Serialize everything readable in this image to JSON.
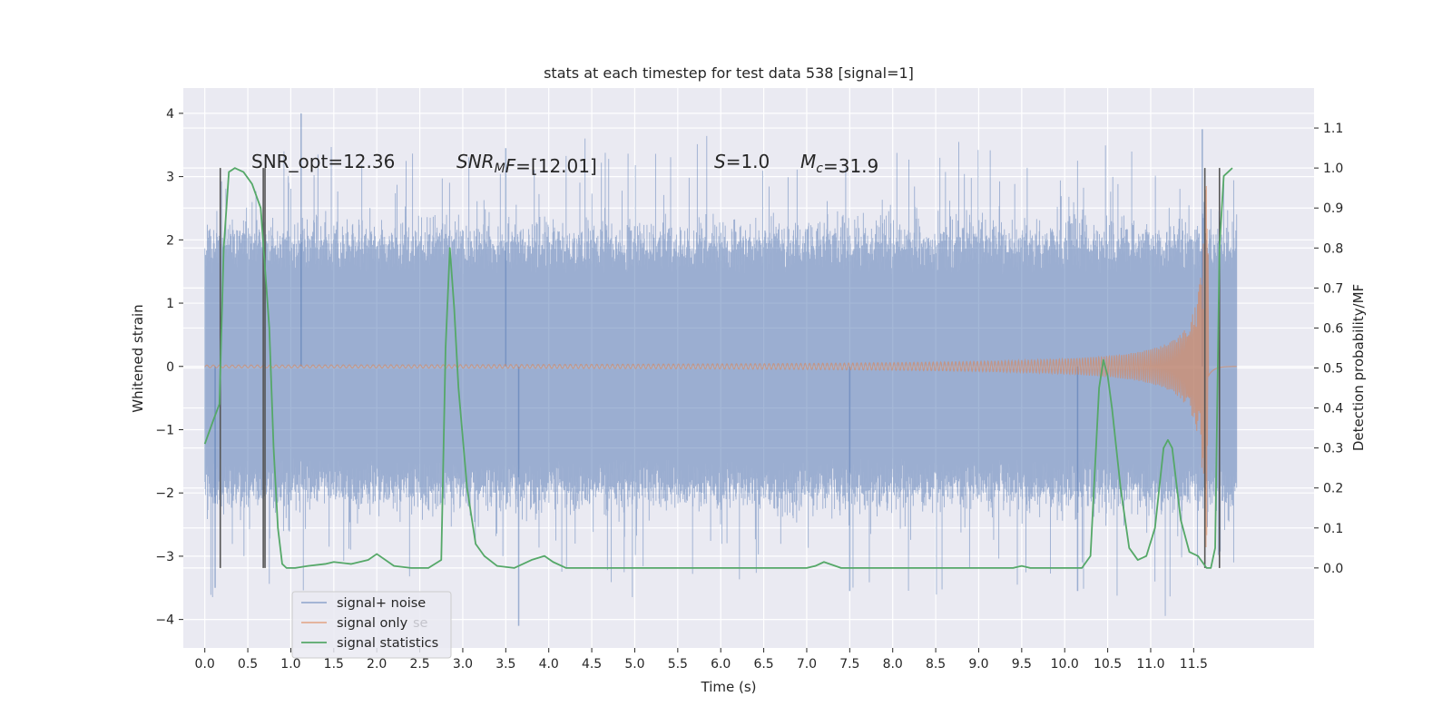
{
  "chart_data": {
    "type": "line",
    "title": "stats at each timestep for test data 538 [signal=1]",
    "xlabel": "Time (s)",
    "ylabel": "Whitened strain",
    "y2label": "Detection probability/MF",
    "xlim": [
      -0.25,
      12.9
    ],
    "ylim": [
      -4.45,
      4.4
    ],
    "y2lim": [
      -0.2,
      1.2
    ],
    "xticks": [
      "0.0",
      "0.5",
      "1.0",
      "1.5",
      "2.0",
      "2.5",
      "3.0",
      "3.5",
      "4.0",
      "4.5",
      "5.0",
      "5.5",
      "6.0",
      "6.5",
      "7.0",
      "7.5",
      "8.0",
      "8.5",
      "9.0",
      "9.5",
      "10.0",
      "10.5",
      "11.0",
      "11.5"
    ],
    "yticks": [
      "4",
      "3",
      "2",
      "1",
      "0",
      "−1",
      "−2",
      "−3",
      "−4"
    ],
    "y2ticks": [
      "1.1",
      "1.0",
      "0.9",
      "0.8",
      "0.7",
      "0.6",
      "0.5",
      "0.4",
      "0.3",
      "0.2",
      "0.1",
      "0.0"
    ],
    "grid": true,
    "legend_position": "lower-left",
    "colors": {
      "background": "#eaeaf2",
      "grid": "#ffffff",
      "noise": "#4c72b0",
      "signal": "#dd8452",
      "stats": "#55a868",
      "markers": "#555555"
    },
    "annotations": [
      {
        "text_plain": "SNR_opt=12.36"
      },
      {
        "main": "SNR",
        "sub": "M",
        "tail": "F=[12.01]"
      },
      {
        "main": "S",
        "tail": "=1.0"
      },
      {
        "main": "M",
        "sub": "c",
        "tail": "=31.9"
      }
    ],
    "series": [
      {
        "name": "signal+ noise",
        "kind": "noise",
        "x_range": [
          0.0,
          12.0
        ],
        "typical_range": [
          -2.0,
          2.0
        ],
        "max": 4.0,
        "min": -4.1
      },
      {
        "name": "signal only",
        "kind": "chirp",
        "x_range": [
          0.0,
          12.0
        ],
        "peak_time": 11.65,
        "peak_amplitude": 2.9
      },
      {
        "name": "signal statistics",
        "kind": "line",
        "axis": "right",
        "x": [
          0.0,
          0.1,
          0.17,
          0.22,
          0.28,
          0.35,
          0.45,
          0.55,
          0.65,
          0.75,
          0.8,
          0.85,
          0.9,
          0.95,
          1.05,
          1.2,
          1.4,
          1.5,
          1.7,
          1.9,
          2.0,
          2.1,
          2.2,
          2.4,
          2.6,
          2.75,
          2.8,
          2.85,
          2.9,
          2.95,
          3.05,
          3.15,
          3.25,
          3.4,
          3.6,
          3.8,
          3.95,
          4.05,
          4.2,
          4.5,
          5.0,
          5.5,
          6.0,
          6.5,
          7.0,
          7.1,
          7.2,
          7.4,
          8.0,
          8.5,
          9.0,
          9.4,
          9.5,
          9.6,
          10.0,
          10.2,
          10.3,
          10.4,
          10.45,
          10.5,
          10.55,
          10.65,
          10.75,
          10.85,
          10.95,
          11.05,
          11.15,
          11.2,
          11.25,
          11.35,
          11.45,
          11.55,
          11.65,
          11.7,
          11.75,
          11.8,
          11.85,
          11.9,
          11.95
        ],
        "y": [
          0.31,
          0.37,
          0.41,
          0.8,
          0.99,
          1.0,
          0.99,
          0.96,
          0.9,
          0.6,
          0.3,
          0.1,
          0.01,
          0.0,
          0.0,
          0.005,
          0.01,
          0.015,
          0.01,
          0.02,
          0.035,
          0.02,
          0.005,
          0.0,
          0.0,
          0.02,
          0.55,
          0.8,
          0.65,
          0.45,
          0.2,
          0.06,
          0.03,
          0.005,
          0.0,
          0.02,
          0.03,
          0.015,
          0.0,
          0.0,
          0.0,
          0.0,
          0.0,
          0.0,
          0.0,
          0.005,
          0.015,
          0.0,
          0.0,
          0.0,
          0.0,
          0.0,
          0.005,
          0.0,
          0.0,
          0.0,
          0.03,
          0.45,
          0.52,
          0.48,
          0.4,
          0.2,
          0.05,
          0.02,
          0.03,
          0.1,
          0.3,
          0.32,
          0.3,
          0.12,
          0.04,
          0.03,
          0.0,
          0.0,
          0.05,
          0.8,
          0.98,
          0.99,
          1.0
        ]
      }
    ],
    "vlines": [
      0.18,
      0.68,
      0.7,
      11.63,
      11.8
    ],
    "legend": [
      "signal+ noise",
      "signal only",
      "signal statistics"
    ],
    "legend_ghost_text": "se"
  }
}
